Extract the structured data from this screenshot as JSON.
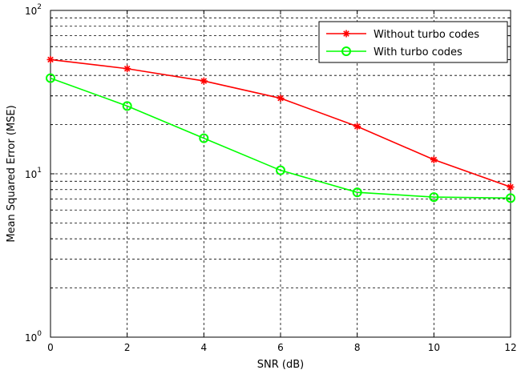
{
  "chart_data": {
    "type": "line",
    "title": "",
    "xlabel": "SNR (dB)",
    "ylabel": "Mean Squared Error (MSE)",
    "xlim": [
      0,
      12
    ],
    "ylim": [
      1,
      100
    ],
    "yscale": "log",
    "grid": true,
    "legend_position": "top-right",
    "x_ticks": [
      0,
      2,
      4,
      6,
      8,
      10,
      12
    ],
    "y_ticks": [
      {
        "value": 1,
        "base": "10",
        "exp": "0"
      },
      {
        "value": 10,
        "base": "10",
        "exp": "1"
      },
      {
        "value": 100,
        "base": "10",
        "exp": "2"
      }
    ],
    "x": [
      0,
      2,
      4,
      6,
      8,
      10,
      12
    ],
    "series": [
      {
        "name": "Without turbo codes",
        "color": "#ff0000",
        "marker": "star",
        "values": [
          50,
          44,
          37,
          29,
          19.5,
          12.2,
          8.3
        ]
      },
      {
        "name": "With turbo codes",
        "color": "#00ff00",
        "marker": "circle",
        "values": [
          38.5,
          26,
          16.5,
          10.5,
          7.7,
          7.2,
          7.1
        ]
      }
    ]
  }
}
